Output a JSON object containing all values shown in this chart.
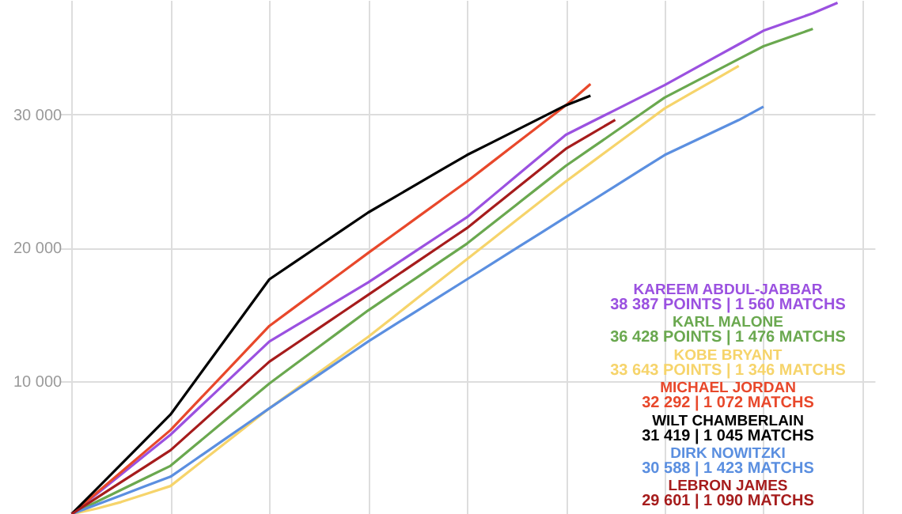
{
  "chart_data": {
    "type": "line",
    "categories": [
      null,
      null,
      null,
      null,
      null,
      null,
      null,
      null,
      null,
      null,
      null,
      null,
      null,
      null,
      null,
      null,
      null,
      null,
      null,
      null,
      null,
      null,
      null,
      null,
      null,
      null,
      null,
      null,
      null,
      null,
      null,
      null,
      null
    ],
    "ylim": [
      0,
      38600
    ],
    "yticks": [
      {
        "value": 10000,
        "label": "10 000"
      },
      {
        "value": 20000,
        "label": "20 000"
      },
      {
        "value": 30000,
        "label": "30 000"
      }
    ],
    "grid": true,
    "tick_labels": "y",
    "marker": "none",
    "line_style": "solid",
    "series": [
      {
        "name": "KAREEM ABDUL-JABBAR",
        "color": "#9b51e0",
        "values": [
          0,
          1488,
          2976,
          4464,
          5952,
          7703,
          9453,
          11204,
          12954,
          14063,
          15171,
          16280,
          17388,
          18614,
          19839,
          21065,
          22290,
          23836,
          25383,
          26929,
          28475,
          29409,
          30342,
          31276,
          32209,
          33230,
          34252,
          35273,
          36294,
          36948,
          37602,
          38387,
          null
        ]
      },
      {
        "name": "KARL MALONE",
        "color": "#6aa84f",
        "values": [
          0,
          905,
          1809,
          2714,
          3618,
          5164,
          6711,
          8257,
          9803,
          11174,
          12546,
          13917,
          15288,
          16543,
          17797,
          19052,
          20306,
          21765,
          23224,
          24682,
          26141,
          27425,
          28709,
          29992,
          31276,
          32239,
          33202,
          34164,
          35127,
          35778,
          36428,
          null,
          null
        ]
      },
      {
        "name": "KOBE BRYANT",
        "color": "#f6d46b",
        "values": [
          0,
          400,
          900,
          1500,
          2101,
          3560,
          5018,
          6477,
          7936,
          9278,
          10620,
          11962,
          13304,
          14763,
          16222,
          17680,
          19139,
          20598,
          22057,
          23515,
          24974,
          26345,
          27717,
          29088,
          30459,
          31521,
          32582,
          33643,
          null,
          null,
          null,
          null,
          null
        ]
      },
      {
        "name": "MICHAEL JORDAN",
        "color": "#e8482b",
        "values": [
          0,
          1576,
          3151,
          4727,
          6302,
          8257,
          10212,
          12166,
          14121,
          15492,
          16864,
          18235,
          19606,
          20948,
          22290,
          23632,
          24974,
          26404,
          27833,
          29263,
          30692,
          32292,
          null,
          null,
          null,
          null,
          null,
          null,
          null,
          null,
          null,
          null,
          null
        ]
      },
      {
        "name": "WILT CHAMBERLAIN",
        "color": "#000000",
        "values": [
          0,
          1867,
          3735,
          5602,
          7469,
          10007,
          12545,
          15084,
          17622,
          18877,
          20131,
          21386,
          22640,
          23720,
          24799,
          25879,
          26958,
          27892,
          28825,
          29759,
          30692,
          31419,
          null,
          null,
          null,
          null,
          null,
          null,
          null,
          null,
          null,
          null,
          null
        ]
      },
      {
        "name": "DIRK NOWITZKI",
        "color": "#5b8fe0",
        "values": [
          0,
          700,
          1400,
          2101,
          2801,
          4085,
          5369,
          6652,
          7936,
          9191,
          10445,
          11700,
          12954,
          14121,
          15288,
          16455,
          17622,
          18789,
          19956,
          21123,
          22290,
          23457,
          24624,
          25791,
          26958,
          27834,
          28709,
          29585,
          30588,
          null,
          null,
          null,
          null
        ]
      },
      {
        "name": "LEBRON JAMES",
        "color": "#a61c1c",
        "values": [
          0,
          1196,
          2393,
          3589,
          4785,
          6448,
          8111,
          9774,
          11437,
          12692,
          13946,
          15201,
          16455,
          17710,
          18964,
          20219,
          21473,
          22961,
          24449,
          25937,
          27425,
          28513,
          29601,
          null,
          null,
          null,
          null,
          null,
          null,
          null,
          null,
          null,
          null
        ]
      }
    ],
    "annotations": [
      "38 387 POINTS | 1 560 MATCHS",
      "36 428 POINTS | 1 476 MATCHS",
      "33 643 POINTS | 1 346 MATCHS",
      "32 292 | 1 072 MATCHS",
      "31 419 | 1 045 MATCHS",
      "30 588 | 1 423 MATCHS",
      "29 601 | 1 090 MATCHS"
    ]
  }
}
